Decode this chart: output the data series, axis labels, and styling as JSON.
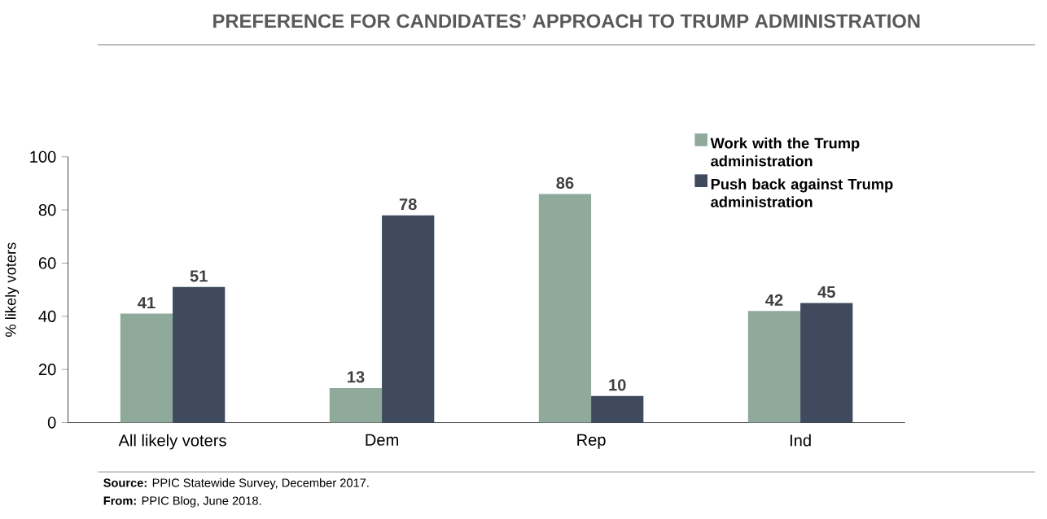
{
  "chart_data": {
    "type": "bar",
    "title": "PREFERENCE FOR CANDIDATES’ APPROACH TO TRUMP ADMINISTRATION",
    "ylabel": "% likely voters",
    "categories": [
      "All likely voters",
      "Dem",
      "Rep",
      "Ind"
    ],
    "series": [
      {
        "name": "Work with the Trump administration",
        "color": "#8faa9b",
        "values": [
          41,
          13,
          86,
          42
        ]
      },
      {
        "name": "Push back against Trump administration",
        "color": "#3f4a5e",
        "values": [
          51,
          78,
          10,
          45
        ]
      }
    ],
    "ylim": [
      0,
      100
    ],
    "yticks": [
      0,
      20,
      40,
      60,
      80,
      100
    ],
    "data_labels": true,
    "legend": "top right",
    "annotations": [
      "**Source:** PPIC Statewide Survey, December 2017.",
      "**From:** PPIC Blog, June 2018."
    ]
  }
}
